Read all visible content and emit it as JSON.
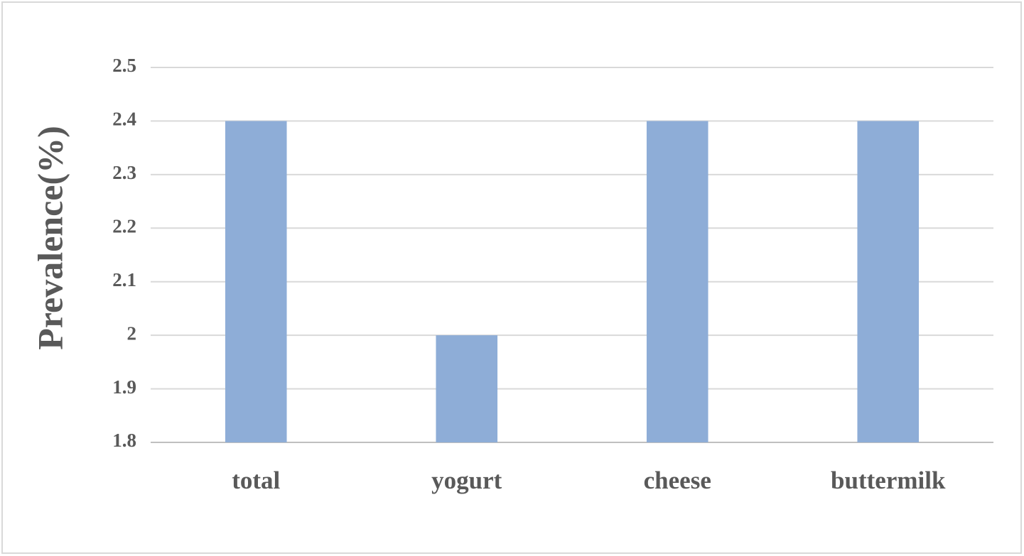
{
  "chart_data": {
    "type": "bar",
    "y_label": "Prevalence(%)",
    "categories": [
      "total",
      "yogurt",
      "cheese",
      "buttermilk"
    ],
    "values": [
      2.4,
      2.0,
      2.4,
      2.4
    ],
    "color": "#8eadd7",
    "ylim": [
      1.8,
      2.5
    ],
    "yticks": [
      1.8,
      1.9,
      2,
      2.1,
      2.2,
      2.3,
      2.4,
      2.5
    ],
    "grid": true
  }
}
